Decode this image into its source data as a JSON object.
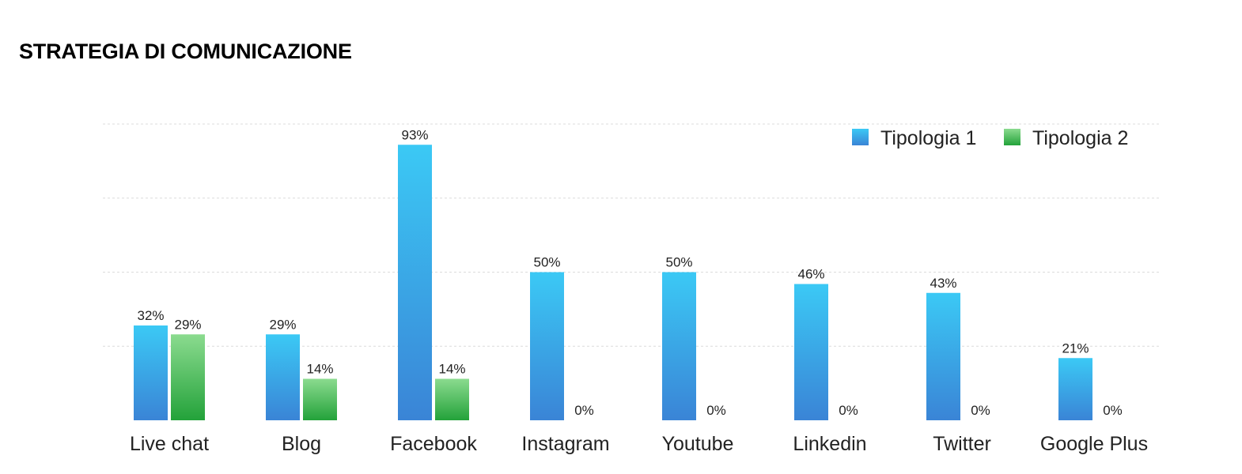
{
  "page": {
    "title": "STRATEGIA DI COMUNICAZIONE"
  },
  "chart_data": {
    "type": "bar",
    "title": "STRATEGIA DI COMUNICAZIONE",
    "categories": [
      "Live chat",
      "Blog",
      "Facebook",
      "Instagram",
      "Youtube",
      "Linkedin",
      "Twitter",
      "Google Plus"
    ],
    "series": [
      {
        "name": "Tipologia 1",
        "values": [
          32,
          29,
          93,
          50,
          50,
          46,
          43,
          21
        ],
        "color_top": "#3bc9f5",
        "color_bottom": "#3a84d6"
      },
      {
        "name": "Tipologia 2",
        "values": [
          29,
          14,
          14,
          0,
          0,
          0,
          0,
          0
        ],
        "color_top": "#8bdb8f",
        "color_bottom": "#23a23a"
      }
    ],
    "value_suffix": "%",
    "ylim": [
      0,
      100
    ],
    "grid": true,
    "legend_position": "top-right",
    "xlabel": "",
    "ylabel": ""
  }
}
